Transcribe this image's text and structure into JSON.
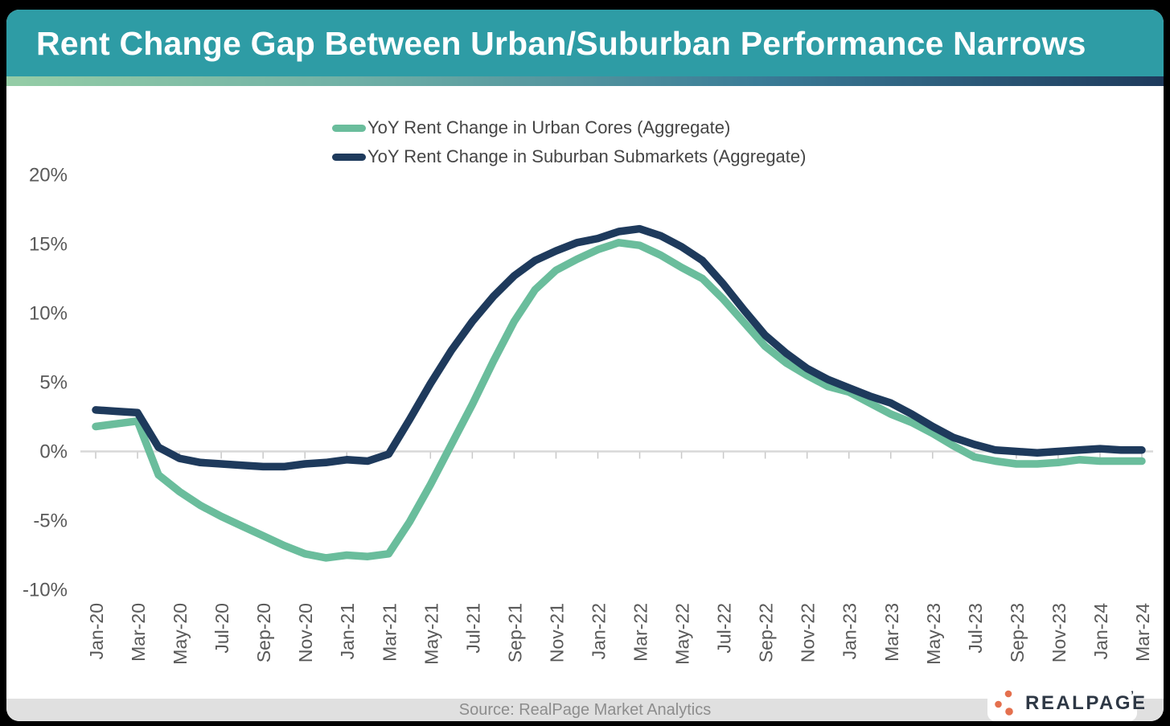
{
  "header": {
    "title": "Rent Change Gap Between Urban/Suburban Performance Narrows"
  },
  "colors": {
    "header_bg": "#2E9CA5",
    "gradient_left": "#95CDA6",
    "gradient_right": "#1E3A5C",
    "axis_text": "#595959",
    "zero_line": "#D8D8D8",
    "tick": "#C8C8C8",
    "source_bg": "#E0E0E0",
    "logo_orange": "#E4704E",
    "urban_green": "#6ABD9C",
    "suburban_navy": "#1E3A5C"
  },
  "chart_data": {
    "type": "line",
    "legend_position": "top-center",
    "grid": "zero-line-only",
    "ylim": [
      -10,
      20
    ],
    "yticks": [
      20,
      15,
      10,
      5,
      0,
      -5,
      -10
    ],
    "ytick_suffix": "%",
    "x": [
      "Jan-20",
      "Feb-20",
      "Mar-20",
      "Apr-20",
      "May-20",
      "Jun-20",
      "Jul-20",
      "Aug-20",
      "Sep-20",
      "Oct-20",
      "Nov-20",
      "Dec-20",
      "Jan-21",
      "Feb-21",
      "Mar-21",
      "Apr-21",
      "May-21",
      "Jun-21",
      "Jul-21",
      "Aug-21",
      "Sep-21",
      "Oct-21",
      "Nov-21",
      "Dec-21",
      "Jan-22",
      "Feb-22",
      "Mar-22",
      "Apr-22",
      "May-22",
      "Jun-22",
      "Jul-22",
      "Aug-22",
      "Sep-22",
      "Oct-22",
      "Nov-22",
      "Dec-22",
      "Jan-23",
      "Feb-23",
      "Mar-23",
      "Apr-23",
      "May-23",
      "Jun-23",
      "Jul-23",
      "Aug-23",
      "Sep-23",
      "Oct-23",
      "Nov-23",
      "Dec-23",
      "Jan-24",
      "Feb-24",
      "Mar-24"
    ],
    "x_tick_labels": [
      "Jan-20",
      "Mar-20",
      "May-20",
      "Jul-20",
      "Sep-20",
      "Nov-20",
      "Jan-21",
      "Mar-21",
      "May-21",
      "Jul-21",
      "Sep-21",
      "Nov-21",
      "Jan-22",
      "Mar-22",
      "May-22",
      "Jul-22",
      "Sep-22",
      "Nov-22",
      "Jan-23",
      "Mar-23",
      "May-23",
      "Jul-23",
      "Sep-23",
      "Nov-23",
      "Jan-24",
      "Mar-24"
    ],
    "series": [
      {
        "name": "YoY Rent Change in Urban Cores (Aggregate)",
        "color": "#6ABD9C",
        "values": [
          1.8,
          2.0,
          2.2,
          -1.7,
          -2.9,
          -3.9,
          -4.7,
          -5.4,
          -6.1,
          -6.8,
          -7.4,
          -7.7,
          -7.5,
          -7.6,
          -7.4,
          -5.1,
          -2.4,
          0.5,
          3.4,
          6.5,
          9.4,
          11.7,
          13.1,
          13.9,
          14.6,
          15.1,
          14.9,
          14.2,
          13.3,
          12.5,
          11.0,
          9.3,
          7.6,
          6.4,
          5.5,
          4.7,
          4.3,
          3.5,
          2.7,
          2.1,
          1.3,
          0.4,
          -0.4,
          -0.7,
          -0.9,
          -0.9,
          -0.8,
          -0.6,
          -0.7,
          -0.7,
          -0.7
        ]
      },
      {
        "name": "YoY Rent Change in Suburban Submarkets (Aggregate)",
        "color": "#1E3A5C",
        "values": [
          3.0,
          2.9,
          2.8,
          0.3,
          -0.5,
          -0.8,
          -0.9,
          -1.0,
          -1.1,
          -1.1,
          -0.9,
          -0.8,
          -0.6,
          -0.7,
          -0.2,
          2.3,
          4.9,
          7.3,
          9.4,
          11.2,
          12.7,
          13.8,
          14.5,
          15.1,
          15.4,
          15.9,
          16.1,
          15.6,
          14.8,
          13.8,
          12.1,
          10.2,
          8.4,
          7.1,
          6.0,
          5.2,
          4.6,
          4.0,
          3.5,
          2.7,
          1.8,
          1.0,
          0.5,
          0.1,
          0.0,
          -0.1,
          0.0,
          0.1,
          0.2,
          0.1,
          0.1
        ]
      }
    ]
  },
  "footer": {
    "source": "Source: RealPage Market Analytics",
    "logo_text": "REALPAGE"
  }
}
